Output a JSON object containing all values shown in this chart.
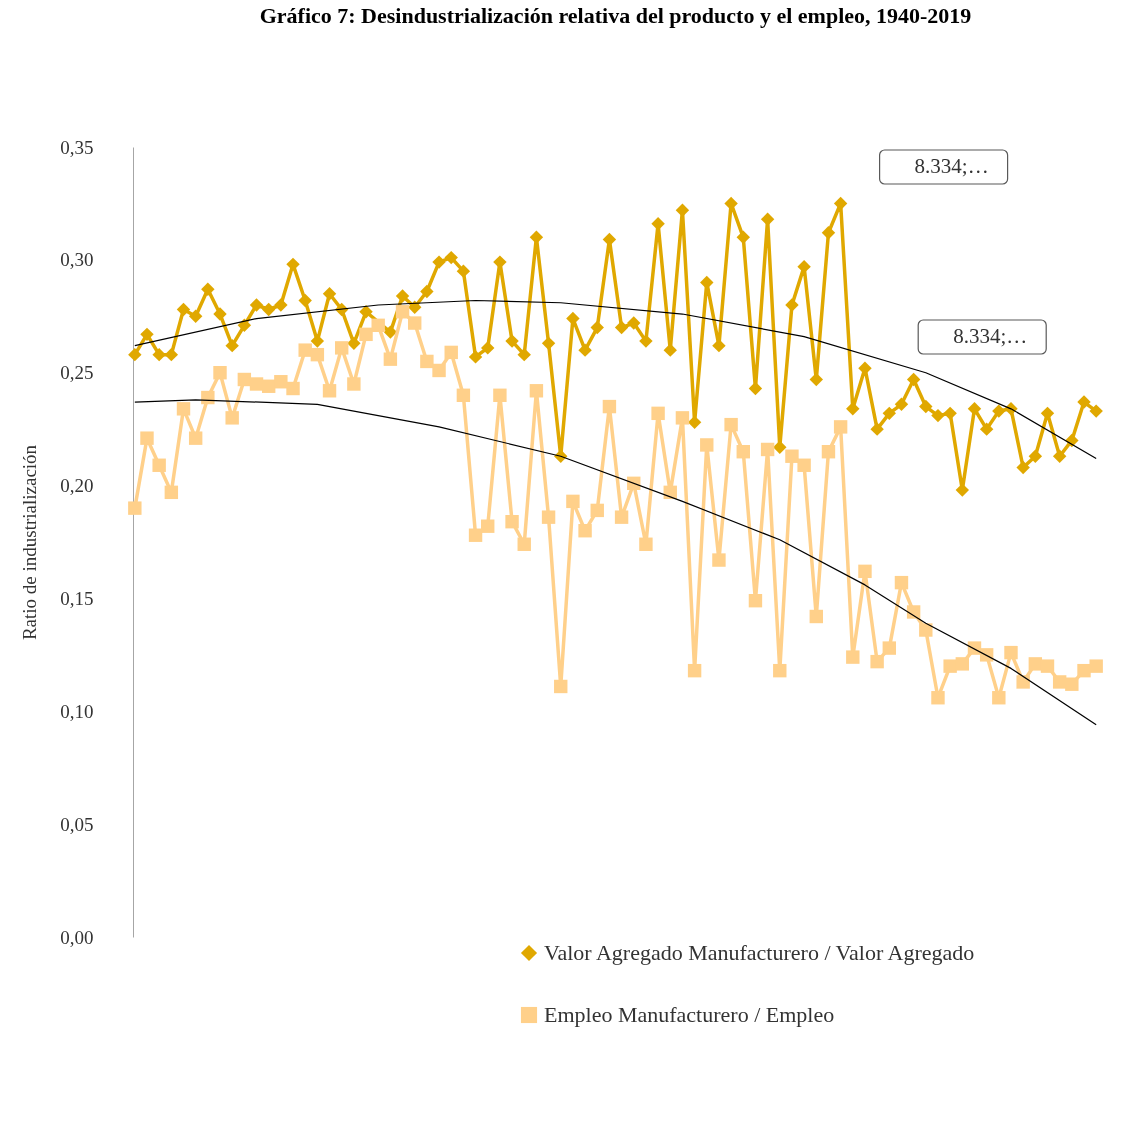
{
  "chart_data": {
    "type": "line",
    "title": "Gráfico 7: Desindustrialización relativa del producto y el empleo, 1940-2019",
    "ylabel": "Ratio de industrialización",
    "categories": [
      null,
      null,
      null,
      null,
      null,
      null,
      null,
      null,
      null,
      null,
      null,
      null,
      null,
      null,
      null,
      null,
      null,
      null,
      null,
      null,
      null,
      null,
      null,
      null,
      null,
      null,
      null,
      null,
      null,
      null,
      null,
      null,
      null,
      null,
      null,
      null,
      null,
      null,
      null,
      null,
      null,
      null,
      null,
      null,
      null,
      null,
      null,
      null,
      null,
      null,
      null,
      null,
      null,
      null,
      null,
      null,
      null,
      null,
      null,
      null,
      null,
      null,
      null,
      null,
      null,
      null,
      null,
      null,
      null,
      null,
      null,
      null,
      null,
      null,
      null,
      null,
      null,
      null,
      null,
      null
    ],
    "series": [
      {
        "name": "Valor Agregado Manufacturero / Valor Agregado",
        "color": "#e0a800",
        "marker": "diamond",
        "values": [
          0.258,
          0.267,
          0.258,
          0.258,
          0.278,
          0.275,
          0.287,
          0.276,
          0.262,
          0.271,
          0.28,
          0.278,
          0.28,
          0.298,
          0.282,
          0.264,
          0.285,
          0.278,
          0.263,
          0.277,
          null,
          0.268,
          0.284,
          0.279,
          0.286,
          0.299,
          0.301,
          0.295,
          0.257,
          0.261,
          0.299,
          0.264,
          0.258,
          0.31,
          0.263,
          0.213,
          0.274,
          0.26,
          0.27,
          0.309,
          0.27,
          0.272,
          0.264,
          0.316,
          0.26,
          0.322,
          0.228,
          0.29,
          0.262,
          0.325,
          0.31,
          0.243,
          0.318,
          0.217,
          0.28,
          0.297,
          0.247,
          0.312,
          0.325,
          0.234,
          0.252,
          0.225,
          0.232,
          0.236,
          0.247,
          0.235,
          0.231,
          0.232,
          0.198,
          0.234,
          0.225,
          0.233,
          0.234,
          0.208,
          0.213,
          0.232,
          0.213,
          0.22,
          0.237,
          0.233
        ]
      },
      {
        "name": "Empleo Manufacturero / Empleo",
        "color": "#ffd08a",
        "marker": "square",
        "values": [
          0.19,
          0.221,
          0.209,
          0.197,
          0.234,
          0.221,
          0.239,
          0.25,
          0.23,
          0.247,
          0.245,
          0.244,
          0.246,
          0.243,
          0.26,
          0.258,
          0.242,
          0.261,
          0.245,
          0.267,
          0.271,
          0.256,
          0.277,
          0.272,
          0.255,
          0.251,
          0.259,
          0.24,
          0.178,
          0.182,
          0.24,
          0.184,
          0.174,
          0.242,
          0.186,
          0.111,
          0.193,
          0.18,
          0.189,
          0.235,
          0.186,
          0.201,
          0.174,
          0.232,
          0.197,
          0.23,
          0.118,
          0.218,
          0.167,
          0.227,
          0.215,
          0.149,
          0.216,
          0.118,
          0.213,
          0.209,
          0.142,
          0.215,
          0.226,
          0.124,
          0.162,
          0.122,
          0.128,
          0.157,
          0.144,
          0.136,
          0.106,
          0.12,
          0.121,
          0.128,
          0.125,
          0.106,
          0.126,
          0.113,
          0.121,
          0.12,
          0.113,
          0.112,
          0.118,
          0.12
        ]
      },
      {
        "color": "#000000",
        "marker": "none",
        "values": [
          0.262,
          null,
          null,
          null,
          null,
          null,
          null,
          null,
          null,
          null,
          0.274,
          null,
          null,
          null,
          null,
          null,
          null,
          null,
          null,
          null,
          0.28,
          null,
          null,
          null,
          null,
          null,
          null,
          null,
          0.282,
          null,
          null,
          null,
          null,
          null,
          null,
          0.281,
          null,
          null,
          null,
          null,
          null,
          null,
          null,
          null,
          null,
          0.276,
          null,
          null,
          null,
          null,
          null,
          null,
          null,
          null,
          null,
          0.266,
          null,
          null,
          null,
          null,
          null,
          null,
          null,
          null,
          null,
          0.25,
          null,
          null,
          null,
          null,
          null,
          null,
          0.234,
          null,
          null,
          null,
          null,
          null,
          null,
          0.212
        ]
      },
      {
        "color": "#000000",
        "marker": "none",
        "values": [
          0.237,
          null,
          null,
          null,
          null,
          0.238,
          null,
          null,
          null,
          null,
          null,
          null,
          null,
          null,
          null,
          0.236,
          null,
          null,
          null,
          null,
          null,
          null,
          null,
          null,
          null,
          0.226,
          null,
          null,
          null,
          null,
          null,
          null,
          null,
          null,
          null,
          0.213,
          null,
          null,
          null,
          null,
          null,
          null,
          null,
          null,
          null,
          0.193,
          null,
          null,
          null,
          null,
          null,
          null,
          null,
          0.176,
          null,
          null,
          null,
          null,
          null,
          null,
          0.156,
          null,
          null,
          null,
          null,
          0.139,
          null,
          null,
          null,
          null,
          null,
          null,
          0.119,
          null,
          null,
          null,
          null,
          null,
          null,
          0.094
        ]
      }
    ],
    "ylim": [
      0,
      0.35
    ],
    "yticks": [
      {
        "value": 0,
        "label": "0,00"
      },
      {
        "value": 0.05,
        "label": "0,05"
      },
      {
        "value": 0.1,
        "label": "0,10"
      },
      {
        "value": 0.15,
        "label": "0,15"
      },
      {
        "value": 0.2,
        "label": "0,20"
      },
      {
        "value": 0.25,
        "label": "0,25"
      },
      {
        "value": 0.3,
        "label": "0,30"
      },
      {
        "value": 0.35,
        "label": "0,35"
      }
    ],
    "tick_labels": "y",
    "grid": false,
    "legend": "bottom right",
    "line_style": "solid",
    "annotations": [
      "8.334;…",
      "8.334;…"
    ]
  }
}
